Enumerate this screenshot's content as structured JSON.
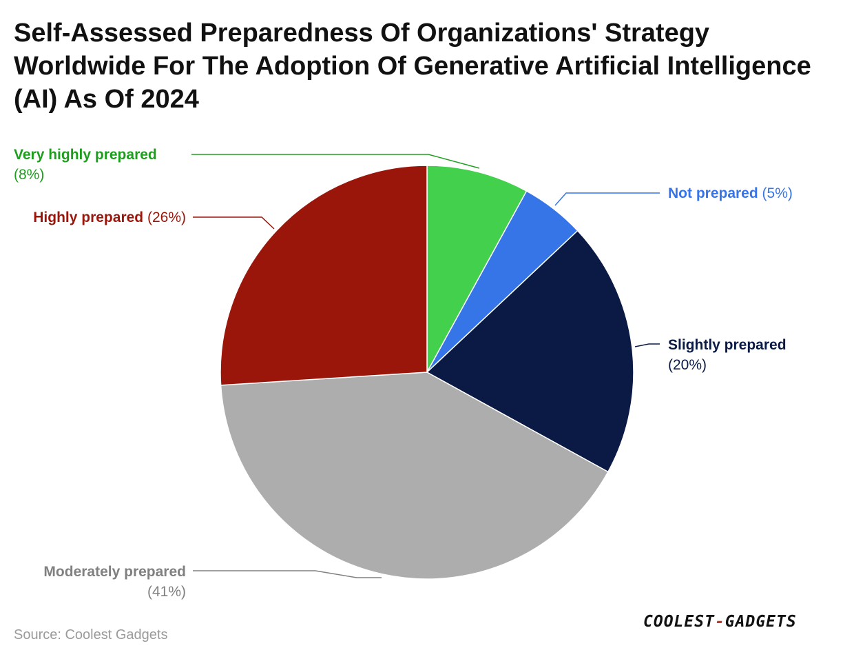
{
  "title": "Self-Assessed Preparedness Of Organizations' Strategy Worldwide For The Adoption Of Generative Artificial Intelligence (AI) As Of 2024",
  "source": "Source: Coolest Gadgets",
  "logo": {
    "part1": "COOLEST",
    "separator": "-",
    "part2": "GADGETS"
  },
  "chart_data": {
    "type": "pie",
    "title": "Self-Assessed Preparedness Of Organizations' Strategy Worldwide For The Adoption Of Generative Artificial Intelligence (AI) As Of 2024",
    "slices": [
      {
        "label": "Very highly prepared",
        "value": 8,
        "value_label": "(8%)",
        "color": "#43d04d",
        "label_color": "#1e9e1e"
      },
      {
        "label": "Not prepared",
        "value": 5,
        "value_label": "(5%)",
        "color": "#3575e8",
        "label_color": "#3575e8"
      },
      {
        "label": "Slightly prepared",
        "value": 20,
        "value_label": "(20%)",
        "color": "#0a1a45",
        "label_color": "#0a1a45"
      },
      {
        "label": "Moderately prepared",
        "value": 41,
        "value_label": "(41%)",
        "color": "#adadad",
        "label_color": "#808080"
      },
      {
        "label": "Highly prepared",
        "value": 26,
        "value_label": "(26%)",
        "color": "#9a150a",
        "label_color": "#9a150a"
      }
    ],
    "start_angle": "12 o'clock",
    "direction": "clockwise",
    "legend": "none"
  }
}
